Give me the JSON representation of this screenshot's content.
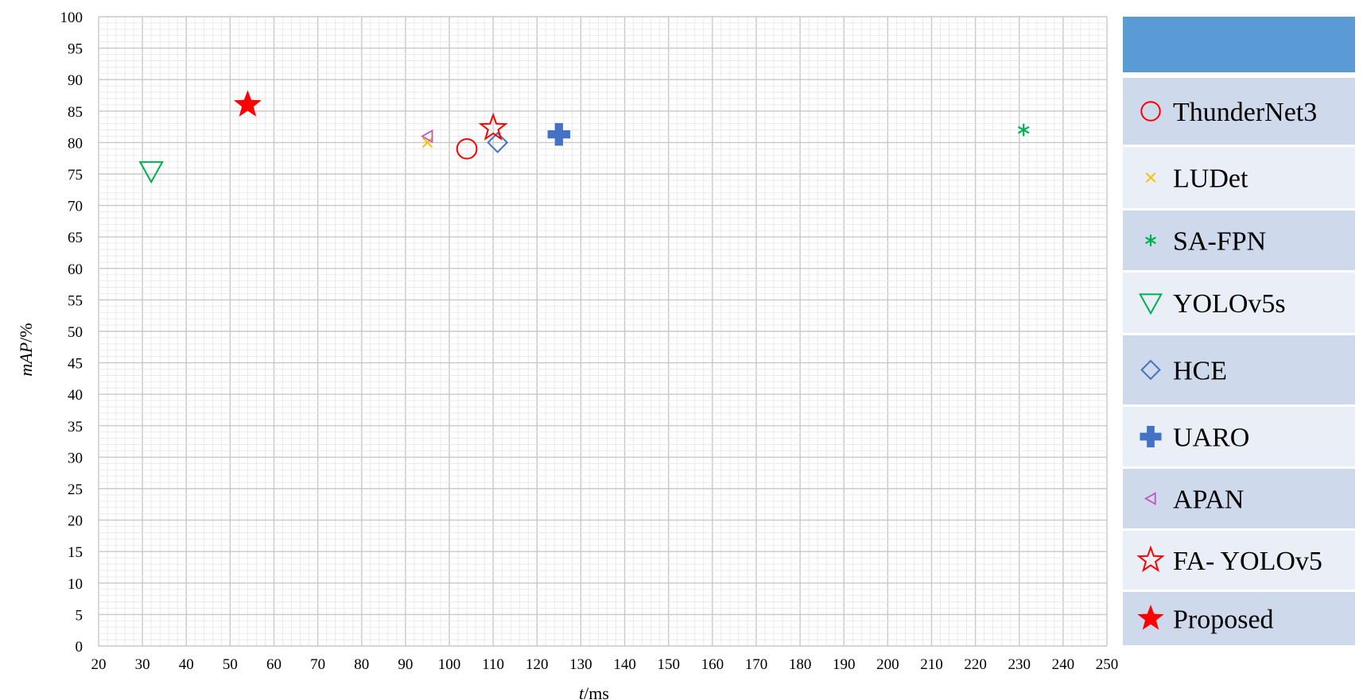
{
  "chart_data": {
    "type": "scatter",
    "xlabel_italic": "t",
    "xlabel_unit": "/ms",
    "ylabel_italic": "mAP",
    "ylabel_unit": "/%",
    "xlim": [
      20,
      250
    ],
    "ylim": [
      0,
      100
    ],
    "x_ticks": [
      20,
      30,
      40,
      50,
      60,
      70,
      80,
      90,
      100,
      110,
      120,
      130,
      140,
      150,
      160,
      170,
      180,
      190,
      200,
      210,
      220,
      230,
      240,
      250
    ],
    "y_ticks": [
      0,
      5,
      10,
      15,
      20,
      25,
      30,
      35,
      40,
      45,
      50,
      55,
      60,
      65,
      70,
      75,
      80,
      85,
      90,
      95,
      100
    ],
    "grid": "major-and-minor",
    "legend_position": "right",
    "legend_header_color": "#5b9bd5",
    "legend_band_colors": [
      "#cfd9ec",
      "#e9eef7"
    ],
    "series": [
      {
        "name": "ThunderNet3",
        "marker": "circle-open",
        "color": "#ff0000",
        "x": 104,
        "y": 79
      },
      {
        "name": "LUDet",
        "marker": "x",
        "color": "#ffc000",
        "x": 95,
        "y": 80
      },
      {
        "name": "SA-FPN",
        "marker": "asterisk",
        "color": "#00b050",
        "x": 231,
        "y": 82
      },
      {
        "name": "YOLOv5s",
        "marker": "triangle-down-open",
        "color": "#00b050",
        "x": 32,
        "y": 75.5
      },
      {
        "name": "HCE",
        "marker": "diamond-open",
        "color": "#4472c4",
        "x": 111,
        "y": 80
      },
      {
        "name": "UARO",
        "marker": "plus-filled",
        "color": "#4472c4",
        "x": 125,
        "y": 81.3
      },
      {
        "name": "APAN",
        "marker": "triangle-left-open",
        "color": "#c055c0",
        "x": 95,
        "y": 81
      },
      {
        "name": "FA- YOLOv5",
        "marker": "star-open",
        "color": "#ff0000",
        "x": 110,
        "y": 82.3
      },
      {
        "name": "Proposed",
        "marker": "star-filled",
        "color": "#ff0000",
        "x": 54,
        "y": 86
      }
    ]
  }
}
